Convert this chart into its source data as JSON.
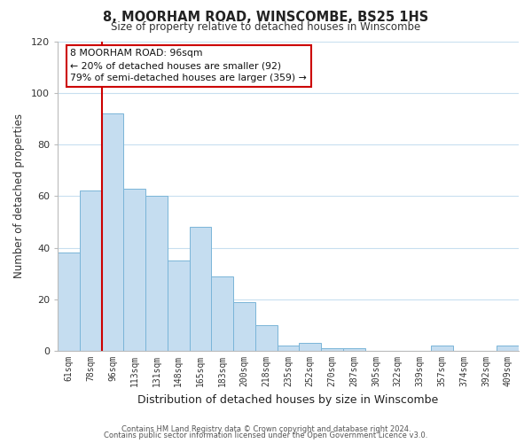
{
  "title": "8, MOORHAM ROAD, WINSCOMBE, BS25 1HS",
  "subtitle": "Size of property relative to detached houses in Winscombe",
  "xlabel": "Distribution of detached houses by size in Winscombe",
  "ylabel": "Number of detached properties",
  "bar_labels": [
    "61sqm",
    "78sqm",
    "96sqm",
    "113sqm",
    "131sqm",
    "148sqm",
    "165sqm",
    "183sqm",
    "200sqm",
    "218sqm",
    "235sqm",
    "252sqm",
    "270sqm",
    "287sqm",
    "305sqm",
    "322sqm",
    "339sqm",
    "357sqm",
    "374sqm",
    "392sqm",
    "409sqm"
  ],
  "bar_heights": [
    38,
    62,
    92,
    63,
    60,
    35,
    48,
    29,
    19,
    10,
    2,
    3,
    1,
    1,
    0,
    0,
    0,
    2,
    0,
    0,
    2
  ],
  "bar_color": "#c5ddf0",
  "bar_edge_color": "#7ab5d8",
  "highlight_index": 2,
  "highlight_color": "#cc0000",
  "ylim": [
    0,
    120
  ],
  "yticks": [
    0,
    20,
    40,
    60,
    80,
    100,
    120
  ],
  "annotation_title": "8 MOORHAM ROAD: 96sqm",
  "annotation_line1": "← 20% of detached houses are smaller (92)",
  "annotation_line2": "79% of semi-detached houses are larger (359) →",
  "footer1": "Contains HM Land Registry data © Crown copyright and database right 2024.",
  "footer2": "Contains public sector information licensed under the Open Government Licence v3.0.",
  "background_color": "#ffffff",
  "grid_color": "#c8dff0"
}
